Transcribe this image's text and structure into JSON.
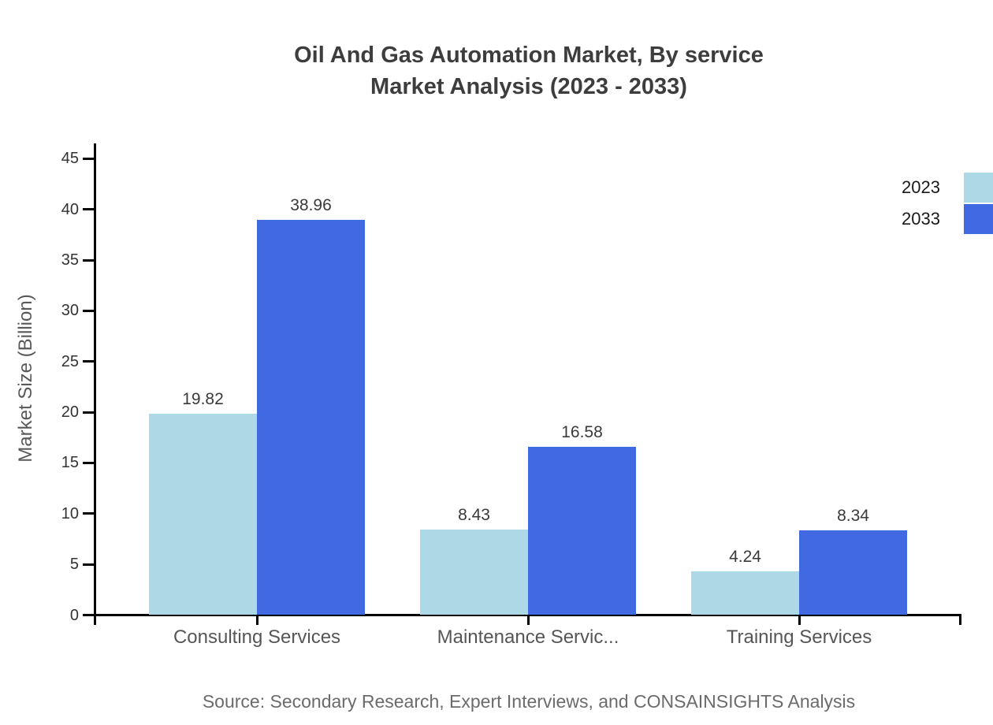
{
  "title": {
    "line1": "Oil And Gas Automation Market, By service",
    "line2": "Market Analysis (2023 - 2033)"
  },
  "y_axis": {
    "title": "Market Size (Billion)"
  },
  "legend": {
    "items": [
      {
        "label": "2023",
        "color": "#ADD8E6"
      },
      {
        "label": "2033",
        "color": "#4169E1"
      }
    ]
  },
  "source_note": "Source: Secondary Research, Expert Interviews, and CONSAINSIGHTS Analysis",
  "chart_data": {
    "type": "bar",
    "title": "Oil And Gas Automation Market, By service Market Analysis (2023 - 2033)",
    "categories": [
      "Consulting Services",
      "Maintenance Servic...",
      "Training Services"
    ],
    "series": [
      {
        "name": "2023",
        "color": "#ADD8E6",
        "values": [
          19.82,
          8.43,
          4.24
        ]
      },
      {
        "name": "2033",
        "color": "#4169E1",
        "values": [
          38.96,
          16.58,
          8.34
        ]
      }
    ],
    "value_labels": [
      "19.82",
      "38.96",
      "8.43",
      "16.58",
      "4.24",
      "8.34"
    ],
    "xlabel": "",
    "ylabel": "Market Size (Billion)",
    "ylim": [
      0,
      45
    ],
    "yticks": [
      0,
      5,
      10,
      15,
      20,
      25,
      30,
      35,
      40,
      45
    ],
    "grid": false,
    "legend_position": "top-right"
  }
}
